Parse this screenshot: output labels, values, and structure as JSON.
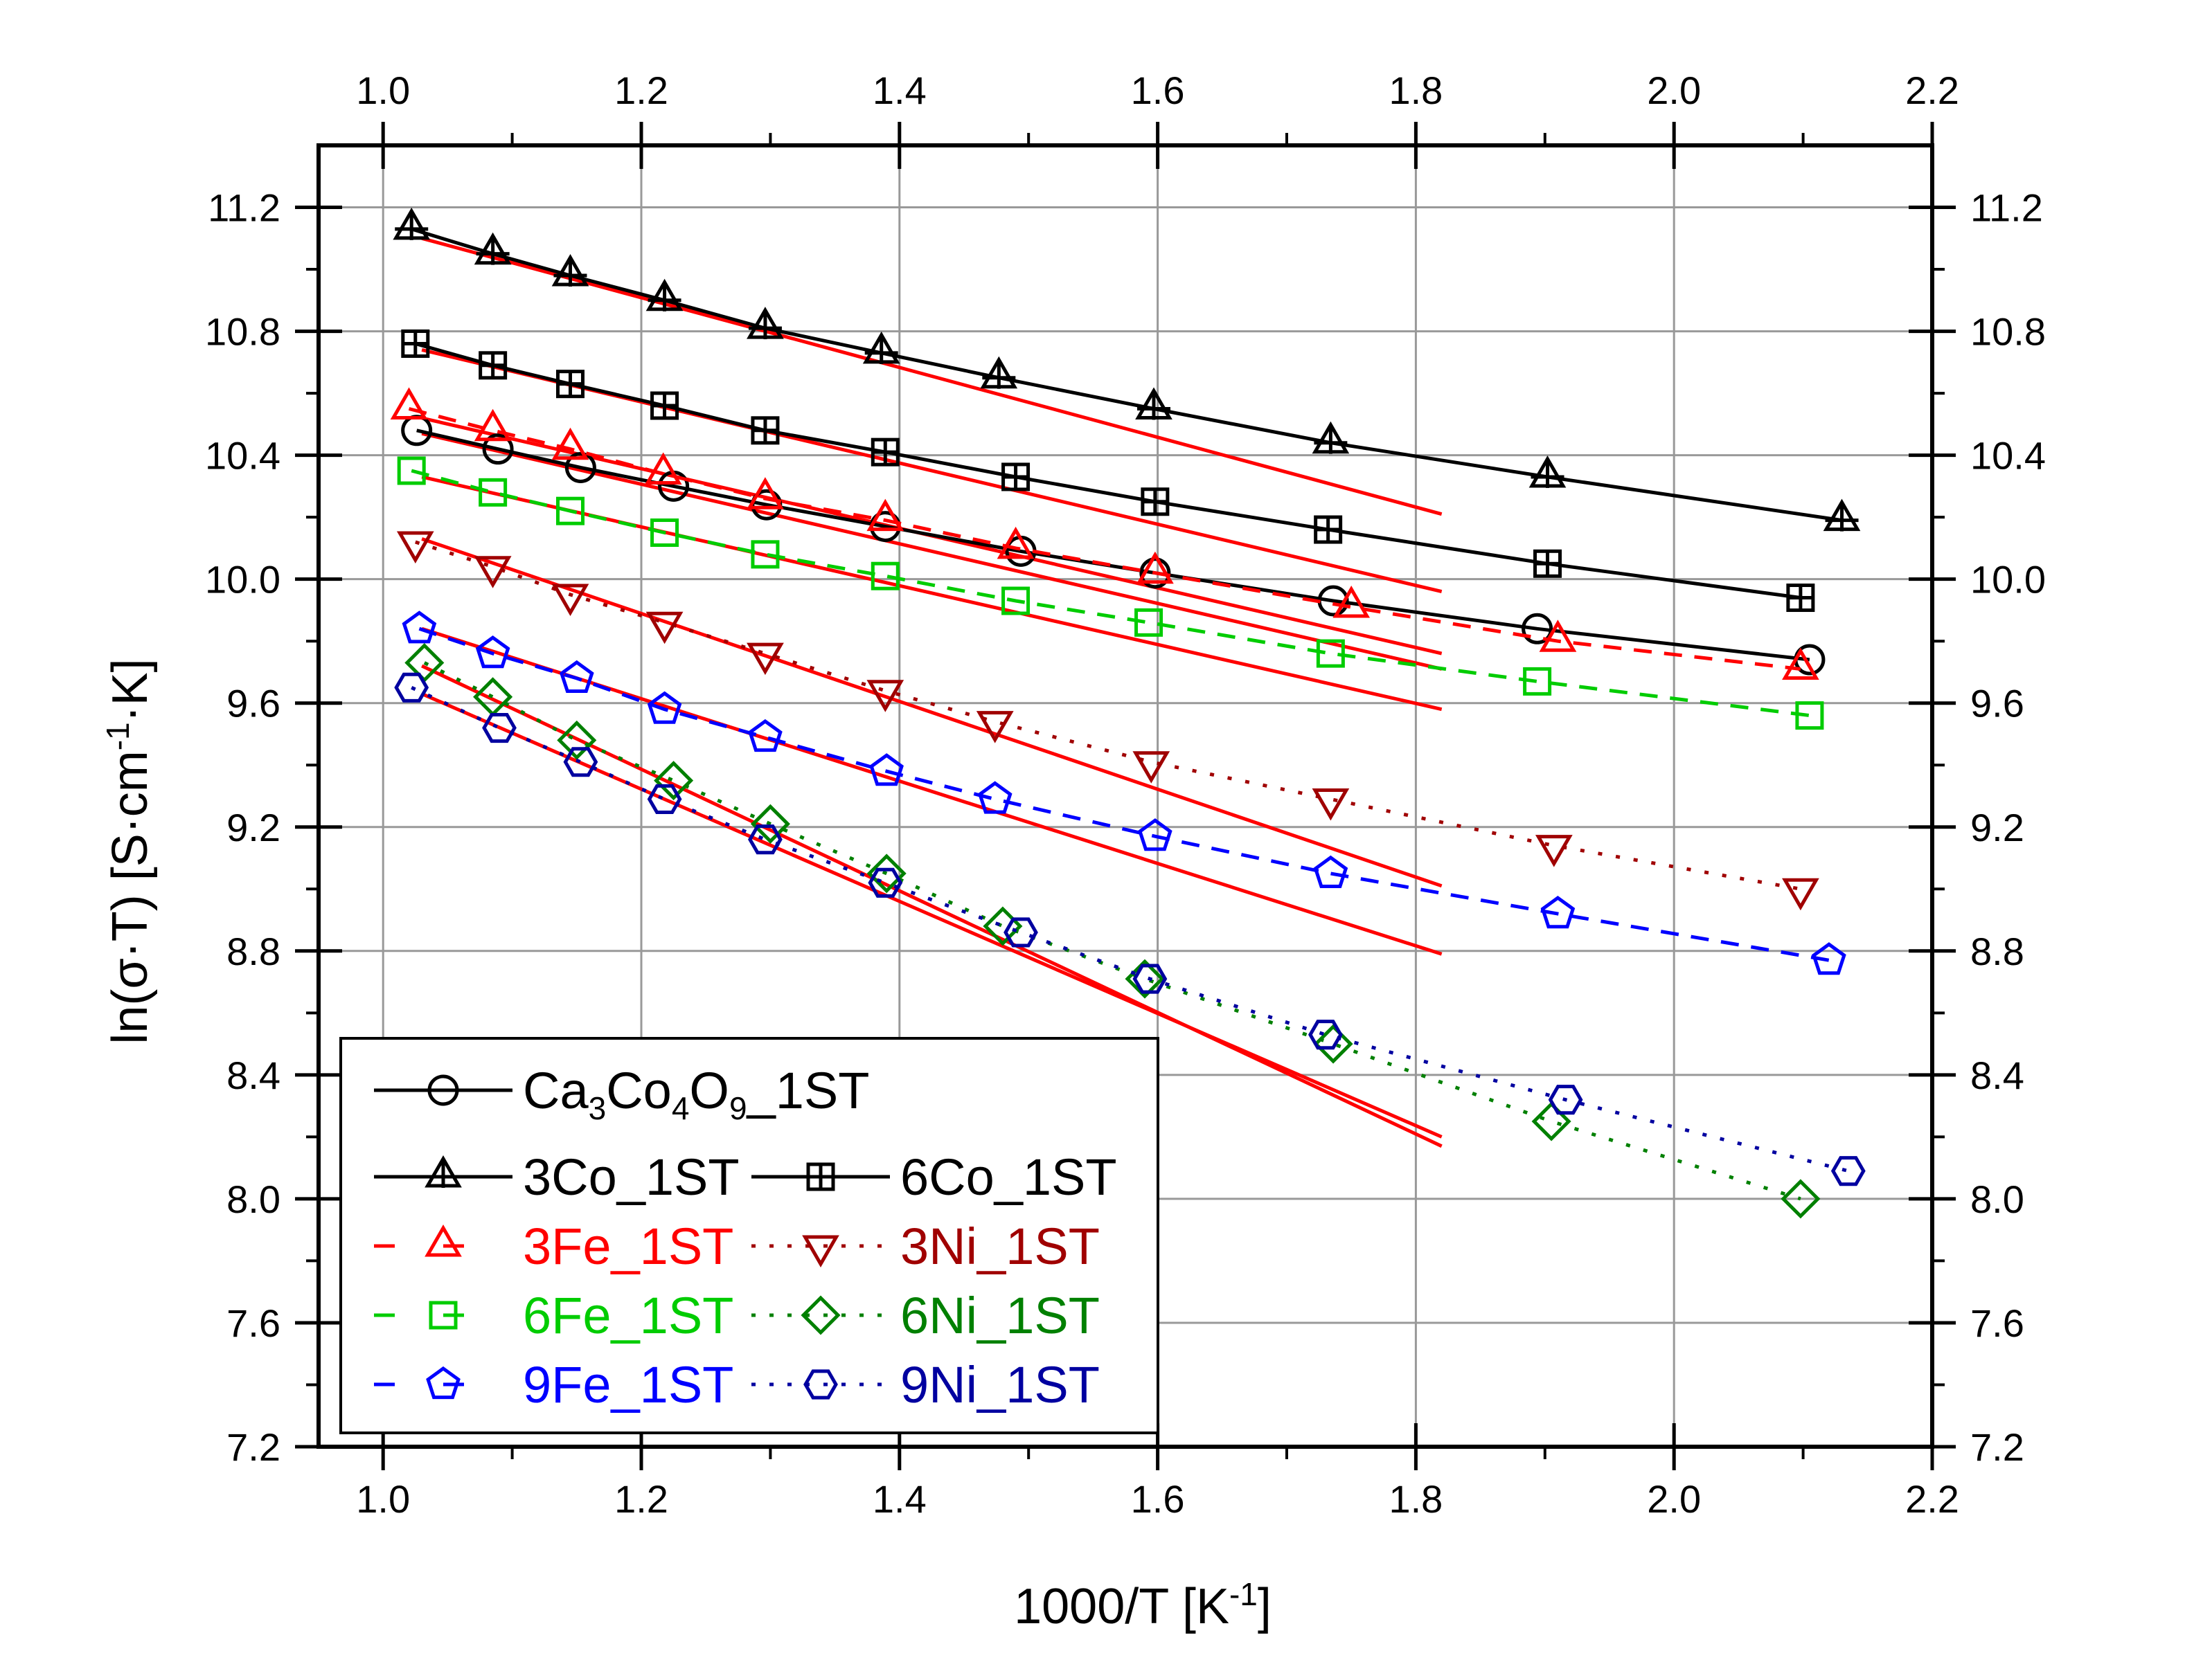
{
  "chart_data": {
    "type": "scatter",
    "title": "",
    "xlabel": "1000/T [K⁻¹]",
    "ylabel": "ln(σ·T) [S·cm⁻¹·K]",
    "xlim": [
      0.95,
      2.2
    ],
    "ylim": [
      7.2,
      11.4
    ],
    "xticks": [
      1.0,
      1.2,
      1.4,
      1.6,
      1.8,
      2.0,
      2.2
    ],
    "xtick_labels": [
      "1.0",
      "1.2",
      "1.4",
      "1.6",
      "1.8",
      "2.0",
      "2.2"
    ],
    "yticks": [
      7.2,
      7.6,
      8.0,
      8.4,
      8.8,
      9.2,
      9.6,
      10.0,
      10.4,
      10.8,
      11.2
    ],
    "ytick_labels": [
      "7.2",
      "7.6",
      "8.0",
      "8.4",
      "8.8",
      "9.2",
      "9.6",
      "10.0",
      "10.4",
      "10.8",
      "11.2"
    ],
    "grid": true,
    "legend_position": "bottom-left",
    "series": [
      {
        "name": "Ca3Co4O9_1ST",
        "label_main": "Ca",
        "label_subs": [
          "3",
          "4",
          "9"
        ],
        "color": "#000000",
        "marker": "circle",
        "dash": "solid",
        "x": [
          1.026,
          1.089,
          1.153,
          1.225,
          1.297,
          1.389,
          1.494,
          1.598,
          1.736,
          1.894,
          2.105
        ],
        "y": [
          10.48,
          10.42,
          10.36,
          10.3,
          10.24,
          10.17,
          10.09,
          10.02,
          9.93,
          9.84,
          9.74
        ]
      },
      {
        "name": "3Co_1ST",
        "color": "#000000",
        "marker": "triangle-up-cross",
        "dash": "solid",
        "x": [
          1.022,
          1.085,
          1.145,
          1.218,
          1.296,
          1.386,
          1.477,
          1.597,
          1.734,
          1.902,
          2.13
        ],
        "y": [
          11.13,
          11.05,
          10.98,
          10.9,
          10.81,
          10.73,
          10.65,
          10.55,
          10.44,
          10.33,
          10.19
        ]
      },
      {
        "name": "6Co_1ST",
        "color": "#000000",
        "marker": "square-plus",
        "dash": "solid",
        "x": [
          1.025,
          1.085,
          1.145,
          1.218,
          1.296,
          1.389,
          1.49,
          1.598,
          1.732,
          1.902,
          2.098
        ],
        "y": [
          10.76,
          10.69,
          10.63,
          10.56,
          10.48,
          10.41,
          10.33,
          10.25,
          10.16,
          10.05,
          9.94
        ]
      },
      {
        "name": "3Fe_1ST",
        "color": "#ff0000",
        "marker": "triangle-up",
        "dash": "dash",
        "x": [
          1.02,
          1.085,
          1.145,
          1.217,
          1.296,
          1.389,
          1.49,
          1.598,
          1.75,
          1.91,
          2.098
        ],
        "y": [
          10.55,
          10.48,
          10.42,
          10.34,
          10.26,
          10.19,
          10.1,
          10.02,
          9.91,
          9.8,
          9.71
        ]
      },
      {
        "name": "3Ni_1ST",
        "color": "#a00000",
        "marker": "triangle-down",
        "dash": "dot",
        "x": [
          1.025,
          1.085,
          1.145,
          1.218,
          1.296,
          1.389,
          1.474,
          1.595,
          1.734,
          1.907,
          2.098
        ],
        "y": [
          10.12,
          10.04,
          9.95,
          9.86,
          9.76,
          9.64,
          9.54,
          9.41,
          9.29,
          9.14,
          9.0
        ]
      },
      {
        "name": "6Fe_1ST",
        "color": "#00cc00",
        "marker": "square",
        "dash": "dash",
        "x": [
          1.022,
          1.085,
          1.145,
          1.218,
          1.296,
          1.389,
          1.49,
          1.593,
          1.734,
          1.894,
          2.105
        ],
        "y": [
          10.35,
          10.28,
          10.22,
          10.15,
          10.08,
          10.01,
          9.93,
          9.86,
          9.76,
          9.67,
          9.56
        ]
      },
      {
        "name": "6Ni_1ST",
        "color": "#008000",
        "marker": "diamond",
        "dash": "dot",
        "x": [
          1.032,
          1.085,
          1.15,
          1.225,
          1.3,
          1.39,
          1.48,
          1.59,
          1.736,
          1.905,
          2.098
        ],
        "y": [
          9.73,
          9.62,
          9.48,
          9.35,
          9.21,
          9.05,
          8.88,
          8.71,
          8.5,
          8.25,
          8.0
        ]
      },
      {
        "name": "9Fe_1ST",
        "color": "#0000ff",
        "marker": "pentagon",
        "dash": "dash",
        "x": [
          1.028,
          1.085,
          1.15,
          1.218,
          1.296,
          1.39,
          1.474,
          1.598,
          1.734,
          1.91,
          2.12
        ],
        "y": [
          9.84,
          9.76,
          9.68,
          9.58,
          9.49,
          9.38,
          9.29,
          9.17,
          9.05,
          8.92,
          8.77
        ]
      },
      {
        "name": "9Ni_1ST",
        "color": "#0000a0",
        "marker": "hexagon",
        "dash": "dot",
        "x": [
          1.022,
          1.09,
          1.153,
          1.218,
          1.296,
          1.389,
          1.494,
          1.594,
          1.73,
          1.916,
          2.135
        ],
        "y": [
          9.65,
          9.52,
          9.41,
          9.29,
          9.16,
          9.02,
          8.86,
          8.71,
          8.53,
          8.32,
          8.09
        ]
      }
    ],
    "fits": [
      {
        "name": "fit-3Co",
        "color": "#ff0000",
        "x": [
          1.03,
          1.82
        ],
        "y": [
          11.1,
          10.21
        ]
      },
      {
        "name": "fit-6Co",
        "color": "#ff0000",
        "x": [
          1.03,
          1.82
        ],
        "y": [
          10.74,
          9.96
        ]
      },
      {
        "name": "fit-3Fe",
        "color": "#ff0000",
        "x": [
          1.03,
          1.82
        ],
        "y": [
          10.52,
          9.76
        ]
      },
      {
        "name": "fit-Ca3Co4O9",
        "color": "#ff0000",
        "x": [
          1.03,
          1.82
        ],
        "y": [
          10.47,
          9.71
        ]
      },
      {
        "name": "fit-6Fe",
        "color": "#ff0000",
        "x": [
          1.03,
          1.82
        ],
        "y": [
          10.33,
          9.58
        ]
      },
      {
        "name": "fit-3Ni",
        "color": "#ff0000",
        "x": [
          1.03,
          1.82
        ],
        "y": [
          10.13,
          9.01
        ]
      },
      {
        "name": "fit-9Fe",
        "color": "#ff0000",
        "x": [
          1.03,
          1.82
        ],
        "y": [
          9.84,
          8.79
        ]
      },
      {
        "name": "fit-6Ni",
        "color": "#ff0000",
        "x": [
          1.03,
          1.82
        ],
        "y": [
          9.72,
          8.17
        ]
      },
      {
        "name": "fit-9Ni",
        "color": "#ff0000",
        "x": [
          1.03,
          1.82
        ],
        "y": [
          9.63,
          8.2
        ]
      }
    ],
    "legend": [
      {
        "series": "Ca3Co4O9_1ST",
        "text": "Ca3Co4O9_1ST"
      },
      {
        "series": "3Co_1ST",
        "text": "3Co_1ST"
      },
      {
        "series": "6Co_1ST",
        "text": "6Co_1ST"
      },
      {
        "series": "3Fe_1ST",
        "text": "3Fe_1ST"
      },
      {
        "series": "3Ni_1ST",
        "text": "3Ni_1ST"
      },
      {
        "series": "6Fe_1ST",
        "text": "6Fe_1ST"
      },
      {
        "series": "6Ni_1ST",
        "text": "6Ni_1ST"
      },
      {
        "series": "9Fe_1ST",
        "text": "9Fe_1ST"
      },
      {
        "series": "9Ni_1ST",
        "text": "9Ni_1ST"
      }
    ]
  }
}
